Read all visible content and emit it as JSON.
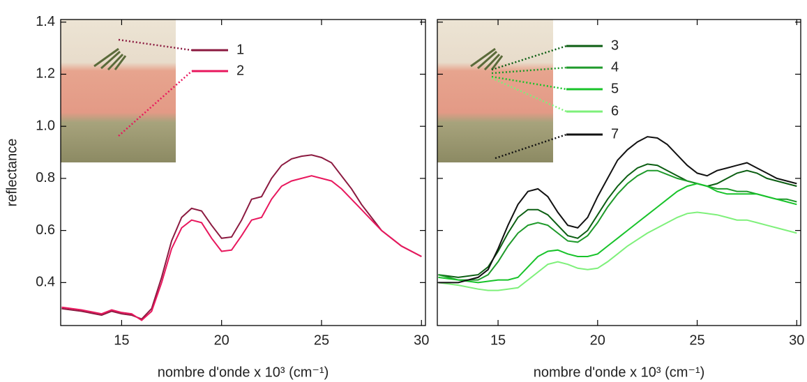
{
  "chart_data": [
    {
      "type": "line",
      "x_label": "nombre d'onde x 10³ (cm⁻¹)",
      "y_label": "reflectance",
      "xlim": [
        11.95,
        30.2
      ],
      "xticks": [
        15,
        20,
        25,
        30
      ],
      "ylim": [
        0.235,
        1.41
      ],
      "yticks": [
        0.4,
        0.6,
        0.8,
        {
          "value": 1,
          "label": "1.0"
        },
        1.2,
        1.4
      ],
      "x": [
        12,
        13,
        14,
        14.5,
        15,
        15.5,
        16,
        16.5,
        17,
        17.5,
        18,
        18.5,
        19,
        19.5,
        20,
        20.5,
        21,
        21.5,
        22,
        22.5,
        23,
        23.5,
        24,
        24.5,
        25,
        25.5,
        26,
        26.5,
        27,
        27.5,
        28,
        28.5,
        29,
        29.5,
        30
      ],
      "series": [
        {
          "name": "1",
          "color": "#8b1a40",
          "values": [
            0.3,
            0.29,
            0.275,
            0.29,
            0.28,
            0.275,
            0.26,
            0.3,
            0.42,
            0.56,
            0.65,
            0.685,
            0.675,
            0.62,
            0.57,
            0.575,
            0.64,
            0.72,
            0.73,
            0.8,
            0.85,
            0.875,
            0.885,
            0.89,
            0.88,
            0.86,
            0.81,
            0.76,
            0.7,
            0.65,
            0.6,
            0.57,
            0.54,
            0.52,
            0.5
          ]
        },
        {
          "name": "2",
          "color": "#e8175d",
          "values": [
            0.305,
            0.295,
            0.28,
            0.295,
            0.285,
            0.28,
            0.255,
            0.29,
            0.4,
            0.53,
            0.61,
            0.64,
            0.63,
            0.57,
            0.52,
            0.525,
            0.58,
            0.64,
            0.65,
            0.72,
            0.77,
            0.79,
            0.8,
            0.81,
            0.8,
            0.79,
            0.76,
            0.72,
            0.68,
            0.64,
            0.6,
            0.57,
            0.54,
            0.52,
            0.5
          ]
        }
      ]
    },
    {
      "type": "line",
      "x_label": "nombre d'onde x 10³ (cm⁻¹)",
      "xlim": [
        11.95,
        30.2
      ],
      "xticks": [
        15,
        20,
        25,
        30
      ],
      "ylim": [
        0.235,
        1.41
      ],
      "yticks": [
        0.4,
        0.6,
        0.8,
        1,
        1.2,
        1.4
      ],
      "x": [
        12,
        13,
        14,
        14.5,
        15,
        15.5,
        16,
        16.5,
        17,
        17.5,
        18,
        18.5,
        19,
        19.5,
        20,
        20.5,
        21,
        21.5,
        22,
        22.5,
        23,
        23.5,
        24,
        24.5,
        25,
        25.5,
        26,
        26.5,
        27,
        27.5,
        28,
        28.5,
        29,
        29.5,
        30
      ],
      "series": [
        {
          "name": "3",
          "color": "#0b5e12",
          "values": [
            0.43,
            0.42,
            0.43,
            0.46,
            0.52,
            0.59,
            0.65,
            0.68,
            0.68,
            0.66,
            0.62,
            0.58,
            0.57,
            0.6,
            0.66,
            0.72,
            0.77,
            0.81,
            0.84,
            0.855,
            0.85,
            0.83,
            0.81,
            0.79,
            0.78,
            0.77,
            0.78,
            0.8,
            0.82,
            0.83,
            0.82,
            0.8,
            0.79,
            0.78,
            0.77
          ]
        },
        {
          "name": "4",
          "color": "#1e9a2a",
          "values": [
            0.43,
            0.41,
            0.41,
            0.43,
            0.48,
            0.54,
            0.59,
            0.62,
            0.63,
            0.62,
            0.59,
            0.56,
            0.555,
            0.58,
            0.63,
            0.69,
            0.74,
            0.78,
            0.81,
            0.83,
            0.83,
            0.815,
            0.8,
            0.79,
            0.78,
            0.77,
            0.76,
            0.76,
            0.75,
            0.75,
            0.74,
            0.73,
            0.72,
            0.72,
            0.71
          ]
        },
        {
          "name": "5",
          "color": "#18c32a",
          "values": [
            0.42,
            0.41,
            0.4,
            0.405,
            0.41,
            0.41,
            0.42,
            0.46,
            0.5,
            0.52,
            0.525,
            0.51,
            0.5,
            0.5,
            0.51,
            0.54,
            0.57,
            0.6,
            0.63,
            0.66,
            0.69,
            0.72,
            0.75,
            0.77,
            0.78,
            0.77,
            0.75,
            0.74,
            0.74,
            0.74,
            0.74,
            0.73,
            0.72,
            0.71,
            0.7
          ]
        },
        {
          "name": "6",
          "color": "#7ef07a",
          "values": [
            0.4,
            0.39,
            0.375,
            0.37,
            0.37,
            0.375,
            0.38,
            0.41,
            0.44,
            0.47,
            0.48,
            0.47,
            0.455,
            0.45,
            0.455,
            0.48,
            0.51,
            0.54,
            0.565,
            0.59,
            0.61,
            0.63,
            0.65,
            0.665,
            0.67,
            0.665,
            0.66,
            0.65,
            0.64,
            0.64,
            0.63,
            0.62,
            0.61,
            0.6,
            0.59
          ]
        },
        {
          "name": "7",
          "color": "#111111",
          "values": [
            0.4,
            0.4,
            0.42,
            0.45,
            0.53,
            0.62,
            0.7,
            0.75,
            0.76,
            0.73,
            0.67,
            0.62,
            0.61,
            0.65,
            0.73,
            0.8,
            0.87,
            0.91,
            0.94,
            0.96,
            0.955,
            0.93,
            0.89,
            0.85,
            0.82,
            0.81,
            0.83,
            0.84,
            0.85,
            0.86,
            0.84,
            0.82,
            0.8,
            0.79,
            0.78
          ]
        }
      ]
    }
  ]
}
